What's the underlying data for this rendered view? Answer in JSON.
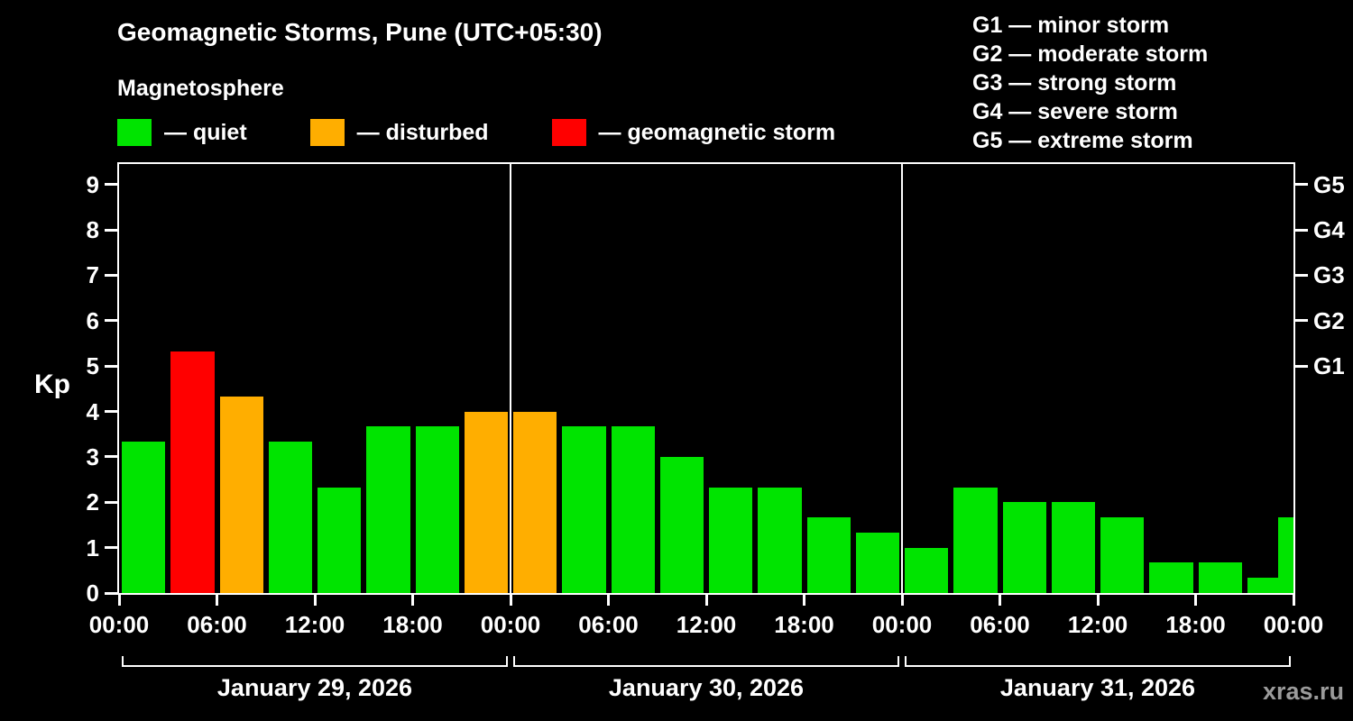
{
  "header": {
    "title": "Geomagnetic Storms, Pune (UTC+05:30)",
    "subtitle": "Magnetosphere"
  },
  "legend": {
    "items": [
      {
        "key": "quiet",
        "label": "— quiet",
        "color": "#00e400"
      },
      {
        "key": "disturbed",
        "label": "— disturbed",
        "color": "#ffae00"
      },
      {
        "key": "storm",
        "label": "— geomagnetic storm",
        "color": "#ff0000"
      }
    ]
  },
  "storm_scale": {
    "items": [
      {
        "label": "G1 — minor storm"
      },
      {
        "label": "G2 — moderate storm"
      },
      {
        "label": "G3 — strong storm"
      },
      {
        "label": "G4 — severe storm"
      },
      {
        "label": "G5 — extreme storm"
      }
    ]
  },
  "watermark": "xras.ru",
  "chart_data": {
    "type": "bar",
    "title": "Geomagnetic Storms, Pune (UTC+05:30)",
    "subtitle": "Magnetosphere",
    "ylabel": "Kp",
    "xlabel": "",
    "ylim": [
      0,
      9.45
    ],
    "grid": false,
    "x_hours_span": 72,
    "bar_interval_hours": 3,
    "yticks": [
      {
        "value": 0,
        "label": "0"
      },
      {
        "value": 1,
        "label": "1"
      },
      {
        "value": 2,
        "label": "2"
      },
      {
        "value": 3,
        "label": "3"
      },
      {
        "value": 4,
        "label": "4"
      },
      {
        "value": 5,
        "label": "5"
      },
      {
        "value": 6,
        "label": "6"
      },
      {
        "value": 7,
        "label": "7"
      },
      {
        "value": 8,
        "label": "8"
      },
      {
        "value": 9,
        "label": "9"
      }
    ],
    "right_axis": {
      "ticks": [
        {
          "value": 5,
          "label": "G1"
        },
        {
          "value": 6,
          "label": "G2"
        },
        {
          "value": 7,
          "label": "G3"
        },
        {
          "value": 8,
          "label": "G4"
        },
        {
          "value": 9,
          "label": "G5"
        }
      ]
    },
    "xticks": [
      {
        "hour": 0,
        "label": "00:00"
      },
      {
        "hour": 6,
        "label": "06:00"
      },
      {
        "hour": 12,
        "label": "12:00"
      },
      {
        "hour": 18,
        "label": "18:00"
      },
      {
        "hour": 24,
        "label": "00:00"
      },
      {
        "hour": 30,
        "label": "06:00"
      },
      {
        "hour": 36,
        "label": "12:00"
      },
      {
        "hour": 42,
        "label": "18:00"
      },
      {
        "hour": 48,
        "label": "00:00"
      },
      {
        "hour": 54,
        "label": "06:00"
      },
      {
        "hour": 60,
        "label": "12:00"
      },
      {
        "hour": 66,
        "label": "18:00"
      },
      {
        "hour": 72,
        "label": "00:00"
      }
    ],
    "days": [
      {
        "label": "January 29, 2026",
        "start": 0,
        "end": 24
      },
      {
        "label": "January 30, 2026",
        "start": 24,
        "end": 48
      },
      {
        "label": "January 31, 2026",
        "start": 48,
        "end": 72
      }
    ],
    "colors": {
      "quiet": "#00e400",
      "disturbed": "#ffae00",
      "storm": "#ff0000",
      "axis": "#ffffff"
    },
    "bars": [
      {
        "start_hour": 0,
        "value": 3.33,
        "status": "quiet"
      },
      {
        "start_hour": 3,
        "value": 5.33,
        "status": "storm"
      },
      {
        "start_hour": 6,
        "value": 4.33,
        "status": "disturbed"
      },
      {
        "start_hour": 9,
        "value": 3.33,
        "status": "quiet"
      },
      {
        "start_hour": 12,
        "value": 2.33,
        "status": "quiet"
      },
      {
        "start_hour": 15,
        "value": 3.67,
        "status": "quiet"
      },
      {
        "start_hour": 18,
        "value": 3.67,
        "status": "quiet"
      },
      {
        "start_hour": 21,
        "value": 4.0,
        "status": "disturbed"
      },
      {
        "start_hour": 24,
        "value": 4.0,
        "status": "disturbed"
      },
      {
        "start_hour": 27,
        "value": 3.67,
        "status": "quiet"
      },
      {
        "start_hour": 30,
        "value": 3.67,
        "status": "quiet"
      },
      {
        "start_hour": 33,
        "value": 3.0,
        "status": "quiet"
      },
      {
        "start_hour": 36,
        "value": 2.33,
        "status": "quiet"
      },
      {
        "start_hour": 39,
        "value": 2.33,
        "status": "quiet"
      },
      {
        "start_hour": 42,
        "value": 1.67,
        "status": "quiet"
      },
      {
        "start_hour": 45,
        "value": 1.33,
        "status": "quiet"
      },
      {
        "start_hour": 48,
        "value": 1.0,
        "status": "quiet"
      },
      {
        "start_hour": 51,
        "value": 2.33,
        "status": "quiet"
      },
      {
        "start_hour": 54,
        "value": 2.0,
        "status": "quiet"
      },
      {
        "start_hour": 57,
        "value": 2.0,
        "status": "quiet"
      },
      {
        "start_hour": 60,
        "value": 1.67,
        "status": "quiet"
      },
      {
        "start_hour": 63,
        "value": 0.67,
        "status": "quiet"
      },
      {
        "start_hour": 66,
        "value": 0.67,
        "status": "quiet"
      },
      {
        "start_hour": 69,
        "value": 0.33,
        "status": "quiet"
      },
      {
        "start_hour": 72,
        "value": 1.67,
        "status": "quiet",
        "partial": true
      }
    ]
  }
}
